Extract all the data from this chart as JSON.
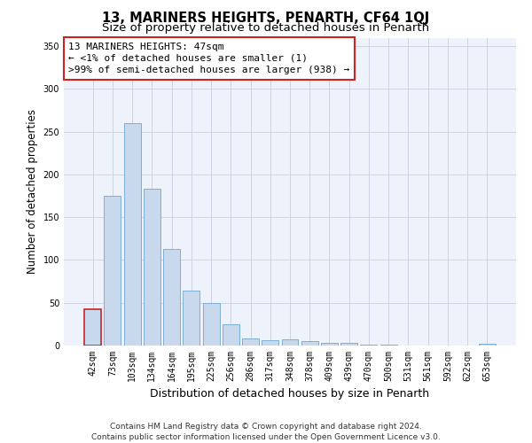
{
  "title": "13, MARINERS HEIGHTS, PENARTH, CF64 1QJ",
  "subtitle": "Size of property relative to detached houses in Penarth",
  "xlabel": "Distribution of detached houses by size in Penarth",
  "ylabel": "Number of detached properties",
  "categories": [
    "42sqm",
    "73sqm",
    "103sqm",
    "134sqm",
    "164sqm",
    "195sqm",
    "225sqm",
    "256sqm",
    "286sqm",
    "317sqm",
    "348sqm",
    "378sqm",
    "409sqm",
    "439sqm",
    "470sqm",
    "500sqm",
    "531sqm",
    "561sqm",
    "592sqm",
    "622sqm",
    "653sqm"
  ],
  "values": [
    42,
    175,
    260,
    183,
    113,
    64,
    50,
    25,
    8,
    6,
    7,
    5,
    3,
    3,
    1,
    1,
    0,
    0,
    0,
    0,
    2
  ],
  "bar_color": "#c8d9ee",
  "bar_edge_color": "#7bafd4",
  "highlight_edge_color": "#cc2222",
  "annotation_text_line1": "13 MARINERS HEIGHTS: 47sqm",
  "annotation_text_line2": "← <1% of detached houses are smaller (1)",
  "annotation_text_line3": ">99% of semi-detached houses are larger (938) →",
  "ylim": [
    0,
    360
  ],
  "yticks": [
    0,
    50,
    100,
    150,
    200,
    250,
    300,
    350
  ],
  "background_color": "#edf2fb",
  "grid_color": "#c8cfe0",
  "footer_line1": "Contains HM Land Registry data © Crown copyright and database right 2024.",
  "footer_line2": "Contains public sector information licensed under the Open Government Licence v3.0.",
  "title_fontsize": 10.5,
  "subtitle_fontsize": 9.5,
  "xlabel_fontsize": 9,
  "ylabel_fontsize": 8.5,
  "tick_fontsize": 7,
  "annotation_fontsize": 8,
  "footer_fontsize": 6.5
}
